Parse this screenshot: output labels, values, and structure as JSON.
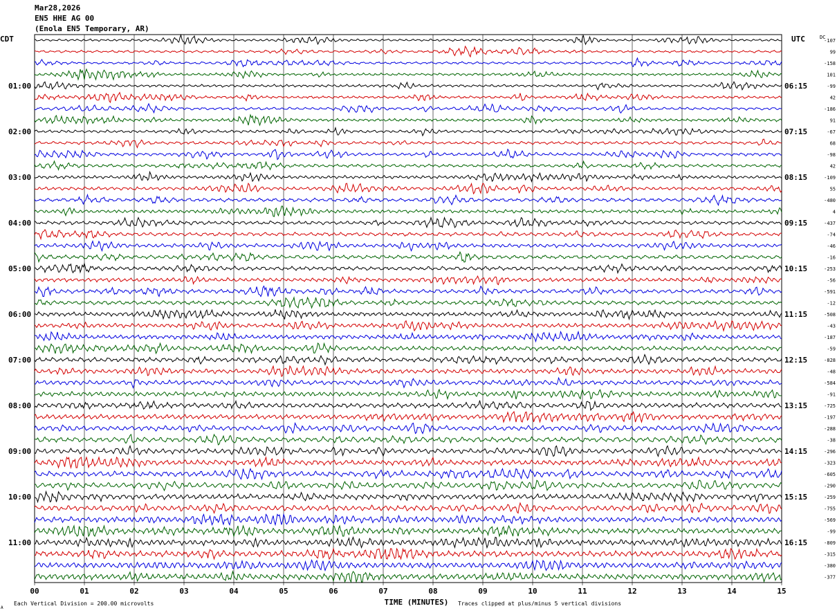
{
  "header": {
    "date": "Mar28,2026",
    "channel": "EN5 HHE AG 00",
    "station": "(Enola EN5 Temporary, AR)"
  },
  "axis_labels": {
    "left_zone": "CDT",
    "right_zone": "UTC",
    "right_col": "DC",
    "x_axis_title": "TIME (MINUTES)"
  },
  "footer": {
    "scale_note": "Each Vertical Division =  200.00 microvolts",
    "clip_note": "Traces clipped at plus/minus 5 vertical divisions",
    "corner_mark": "A"
  },
  "colors": {
    "trace_cycle": [
      "#000000",
      "#d40000",
      "#0000e0",
      "#006400"
    ],
    "grid": "#000000"
  },
  "chart_data": {
    "type": "line",
    "title": "Mar28,2026 EN5 HHE AG 00 (Enola EN5 Temporary, AR)",
    "xlabel": "TIME (MINUTES)",
    "xlim": [
      0,
      15
    ],
    "x_ticks": [
      "00",
      "01",
      "02",
      "03",
      "04",
      "05",
      "06",
      "07",
      "08",
      "09",
      "10",
      "11",
      "12",
      "13",
      "14",
      "15"
    ],
    "row_count": 48,
    "row_minutes": 15,
    "left_time_labels": [
      {
        "row": 4,
        "label": "01:00"
      },
      {
        "row": 8,
        "label": "02:00"
      },
      {
        "row": 12,
        "label": "03:00"
      },
      {
        "row": 16,
        "label": "04:00"
      },
      {
        "row": 20,
        "label": "05:00"
      },
      {
        "row": 24,
        "label": "06:00"
      },
      {
        "row": 28,
        "label": "07:00"
      },
      {
        "row": 32,
        "label": "08:00"
      },
      {
        "row": 36,
        "label": "09:00"
      },
      {
        "row": 40,
        "label": "10:00"
      },
      {
        "row": 44,
        "label": "11:00"
      }
    ],
    "right_time_labels": [
      {
        "row": 4,
        "label": "06:15"
      },
      {
        "row": 8,
        "label": "07:15"
      },
      {
        "row": 12,
        "label": "08:15"
      },
      {
        "row": 16,
        "label": "09:15"
      },
      {
        "row": 20,
        "label": "10:15"
      },
      {
        "row": 24,
        "label": "11:15"
      },
      {
        "row": 28,
        "label": "12:15"
      },
      {
        "row": 32,
        "label": "13:15"
      },
      {
        "row": 36,
        "label": "14:15"
      },
      {
        "row": 40,
        "label": "15:15"
      },
      {
        "row": 44,
        "label": "16:15"
      }
    ],
    "dc_offsets": [
      "-107",
      "99",
      "-158",
      "101",
      "-99",
      "42",
      "-186",
      "91",
      "-67",
      "68",
      "-98",
      "42",
      "-109",
      "55",
      "-480",
      "4",
      "-437",
      "-74",
      "-46",
      "-16",
      "-253",
      "-56",
      "-591",
      "-12",
      "-508",
      "-43",
      "-187",
      "-59",
      "-828",
      "-48",
      "-584",
      "-91",
      "-725",
      "-197",
      "-288",
      "-38",
      "-296",
      "-323",
      "-605",
      "-290",
      "-259",
      "-755",
      "-569",
      "-99",
      "-809",
      "-315",
      "-380",
      "-377"
    ],
    "scale_microvolts_per_division": 200.0,
    "clip_divisions": 5
  }
}
